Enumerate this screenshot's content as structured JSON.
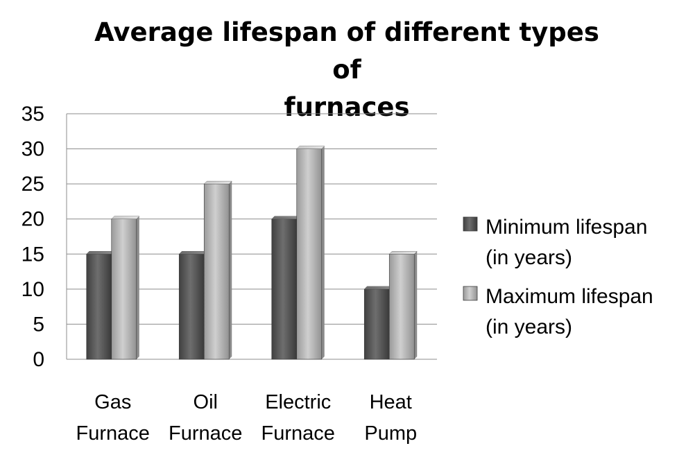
{
  "chart_data": {
    "type": "bar",
    "title": "Average lifespan of different types of furnaces",
    "title_lines": [
      "Average lifespan of different types of",
      "furnaces"
    ],
    "categories": [
      "Gas Furnace",
      "Oil Furnace",
      "Electric Furnace",
      "Heat Pump"
    ],
    "category_lines": [
      [
        "Gas",
        "Furnace"
      ],
      [
        "Oil",
        "Furnace"
      ],
      [
        "Electric",
        "Furnace"
      ],
      [
        "Heat",
        "Pump"
      ]
    ],
    "series": [
      {
        "name": "Minimum lifespan (in years)",
        "name_lines": [
          "Minimum lifespan",
          "(in years)"
        ],
        "values": [
          15,
          15,
          20,
          10
        ],
        "color": "#595959"
      },
      {
        "name": "Maximum lifespan (in years)",
        "name_lines": [
          "Maximum lifespan",
          "(in years)"
        ],
        "values": [
          20,
          25,
          30,
          15
        ],
        "color": "#b3b3b3"
      }
    ],
    "ylim": [
      0,
      35
    ],
    "yticks": [
      0,
      5,
      10,
      15,
      20,
      25,
      30,
      35
    ],
    "xlabel": "",
    "ylabel": "",
    "grid": true,
    "legend_position": "right"
  }
}
